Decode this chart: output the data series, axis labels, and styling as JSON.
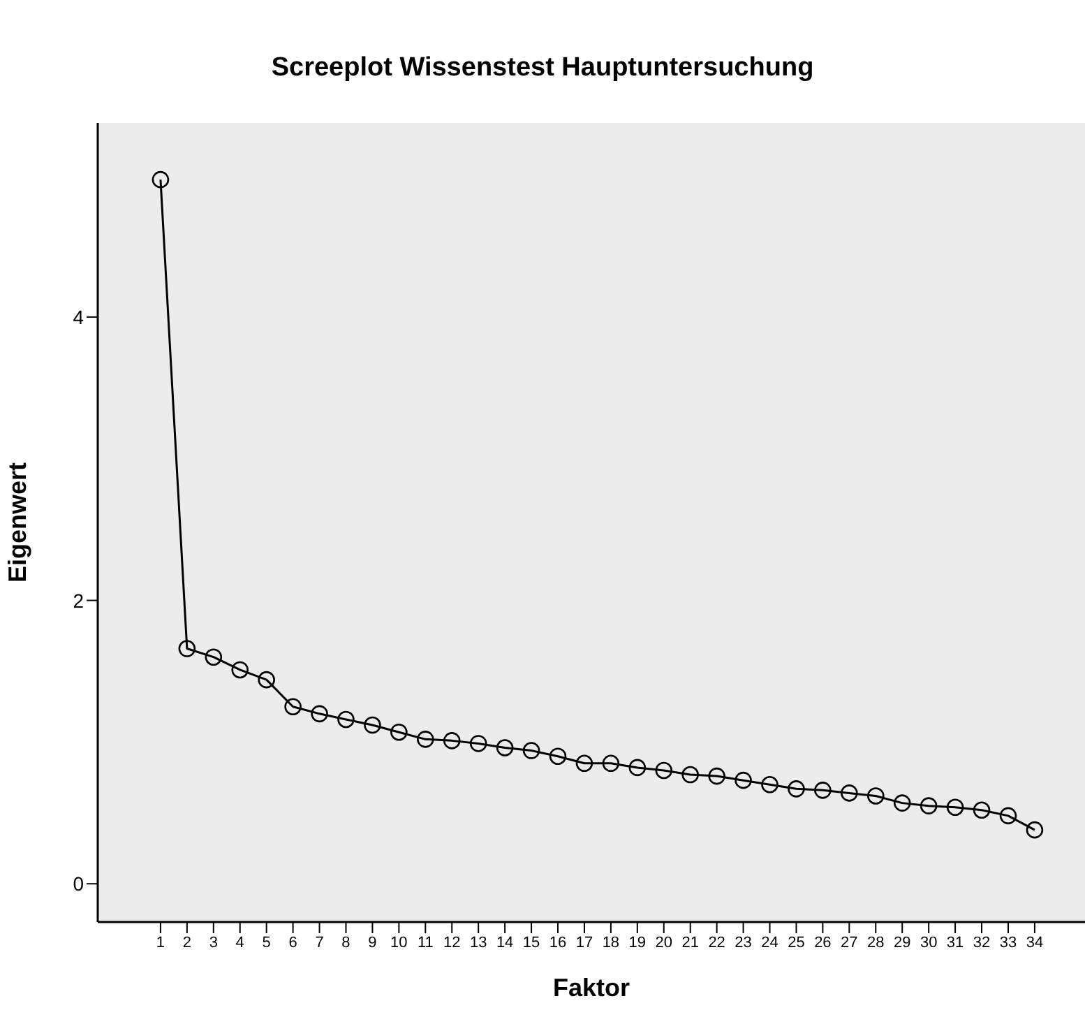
{
  "chart_data": {
    "type": "line",
    "title": "Screeplot Wissenstest Hauptuntersuchung",
    "xlabel": "Faktor",
    "ylabel": "Eigenwert",
    "x": [
      1,
      2,
      3,
      4,
      5,
      6,
      7,
      8,
      9,
      10,
      11,
      12,
      13,
      14,
      15,
      16,
      17,
      18,
      19,
      20,
      21,
      22,
      23,
      24,
      25,
      26,
      27,
      28,
      29,
      30,
      31,
      32,
      33,
      34
    ],
    "xlim": [
      -1.37,
      35.9
    ],
    "xticks": [
      1,
      2,
      3,
      4,
      5,
      6,
      7,
      8,
      9,
      10,
      11,
      12,
      13,
      14,
      15,
      16,
      17,
      18,
      19,
      20,
      21,
      22,
      23,
      24,
      25,
      26,
      27,
      28,
      29,
      30,
      31,
      32,
      33,
      34
    ],
    "ylim": [
      -0.27,
      5.37
    ],
    "yticks": [
      0,
      2,
      4
    ],
    "series": [
      {
        "color": "#000000",
        "values": [
          4.97,
          1.66,
          1.6,
          1.51,
          1.44,
          1.25,
          1.2,
          1.16,
          1.12,
          1.07,
          1.02,
          1.01,
          0.99,
          0.96,
          0.94,
          0.9,
          0.85,
          0.85,
          0.82,
          0.8,
          0.77,
          0.76,
          0.73,
          0.7,
          0.67,
          0.66,
          0.64,
          0.62,
          0.57,
          0.55,
          0.54,
          0.52,
          0.48,
          0.38
        ]
      }
    ],
    "marker": "circle",
    "line_style": "solid",
    "grid": false,
    "legend": false
  }
}
